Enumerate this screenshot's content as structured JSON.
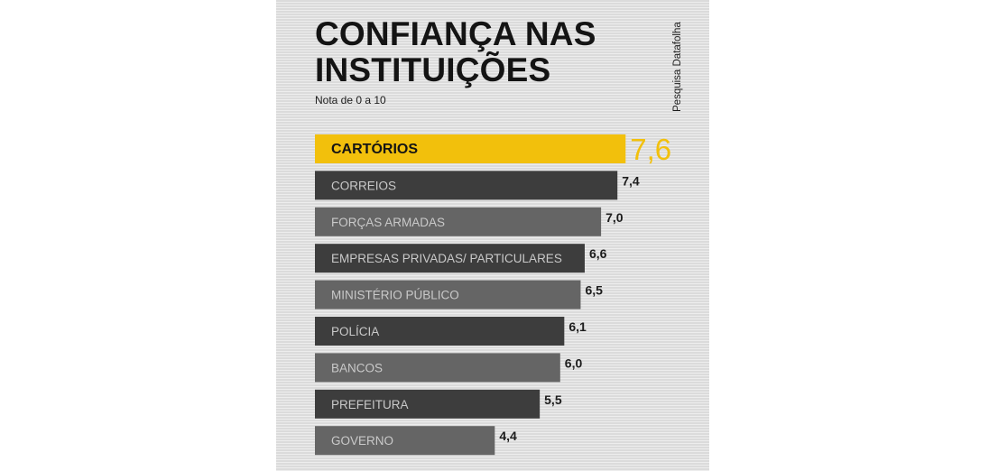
{
  "header": {
    "title_line1": "CONFIANÇA NAS",
    "title_line2": "INSTITUIÇÕES",
    "subtitle": "Nota de 0 a 10",
    "source": "Pesquisa Datafolha"
  },
  "colors": {
    "highlight_bar": "#f2c00c",
    "highlight_value": "#f2c00c",
    "bar_dark": "#3d3d3d",
    "bar_light": "#656565",
    "bar_label": "#c9c9c9",
    "highlight_label": "#141414",
    "value_text": "#1c1c1c"
  },
  "chart_data": {
    "type": "bar",
    "orientation": "horizontal",
    "title": "CONFIANÇA NAS INSTITUIÇÕES",
    "subtitle": "Nota de 0 a 10",
    "categories": [
      "CARTÓRIOS",
      "CORREIOS",
      "FORÇAS ARMADAS",
      "EMPRESAS PRIVADAS/ PARTICULARES",
      "MINISTÉRIO PÚBLICO",
      "POLÍCIA",
      "BANCOS",
      "PREFEITURA",
      "GOVERNO"
    ],
    "values": [
      7.6,
      7.4,
      7.0,
      6.6,
      6.5,
      6.1,
      6.0,
      5.5,
      4.4
    ],
    "value_labels": [
      "7,6",
      "7,4",
      "7,0",
      "6,6",
      "6,5",
      "6,1",
      "6,0",
      "5,5",
      "4,4"
    ],
    "highlighted": "CARTÓRIOS",
    "xlim": [
      0,
      10
    ],
    "grid": false,
    "legend": "none"
  }
}
